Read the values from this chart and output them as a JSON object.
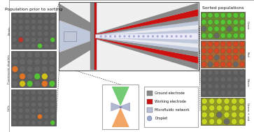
{
  "fig_width": 3.63,
  "fig_height": 1.89,
  "dpi": 100,
  "bg_color": "#ffffff",
  "left_panel_title": "Population prior to sorting",
  "right_panel_title": "Sorted populations",
  "left_labels": [
    "Beads",
    "Fluorescent droplets",
    "Cells"
  ],
  "right_labels": [
    "Green",
    "Red",
    "Waste",
    "Green + red"
  ],
  "legend_items": [
    {
      "label": "Ground electrode",
      "color": "#888888"
    },
    {
      "label": "Working electrode",
      "color": "#cc1111"
    },
    {
      "label": "Microfluidic network",
      "color": "#b8c0d8"
    },
    {
      "label": "Droplet",
      "color": "#9ba8cc"
    }
  ],
  "gray_c": "#888888",
  "red_c": "#cc1111",
  "blue_c": "#c0c8dc",
  "white_c": "#e8eaf0",
  "chip_bg": "#f0f0f0",
  "bead_green": "#55cc33",
  "bead_red": "#cc3322",
  "bead_yellow": "#ddcc11",
  "bead_orange": "#ee7722",
  "bead_gray": "#686868",
  "font_size_title": 4.5,
  "font_size_legend": 3.5,
  "font_size_side_label": 3.0
}
